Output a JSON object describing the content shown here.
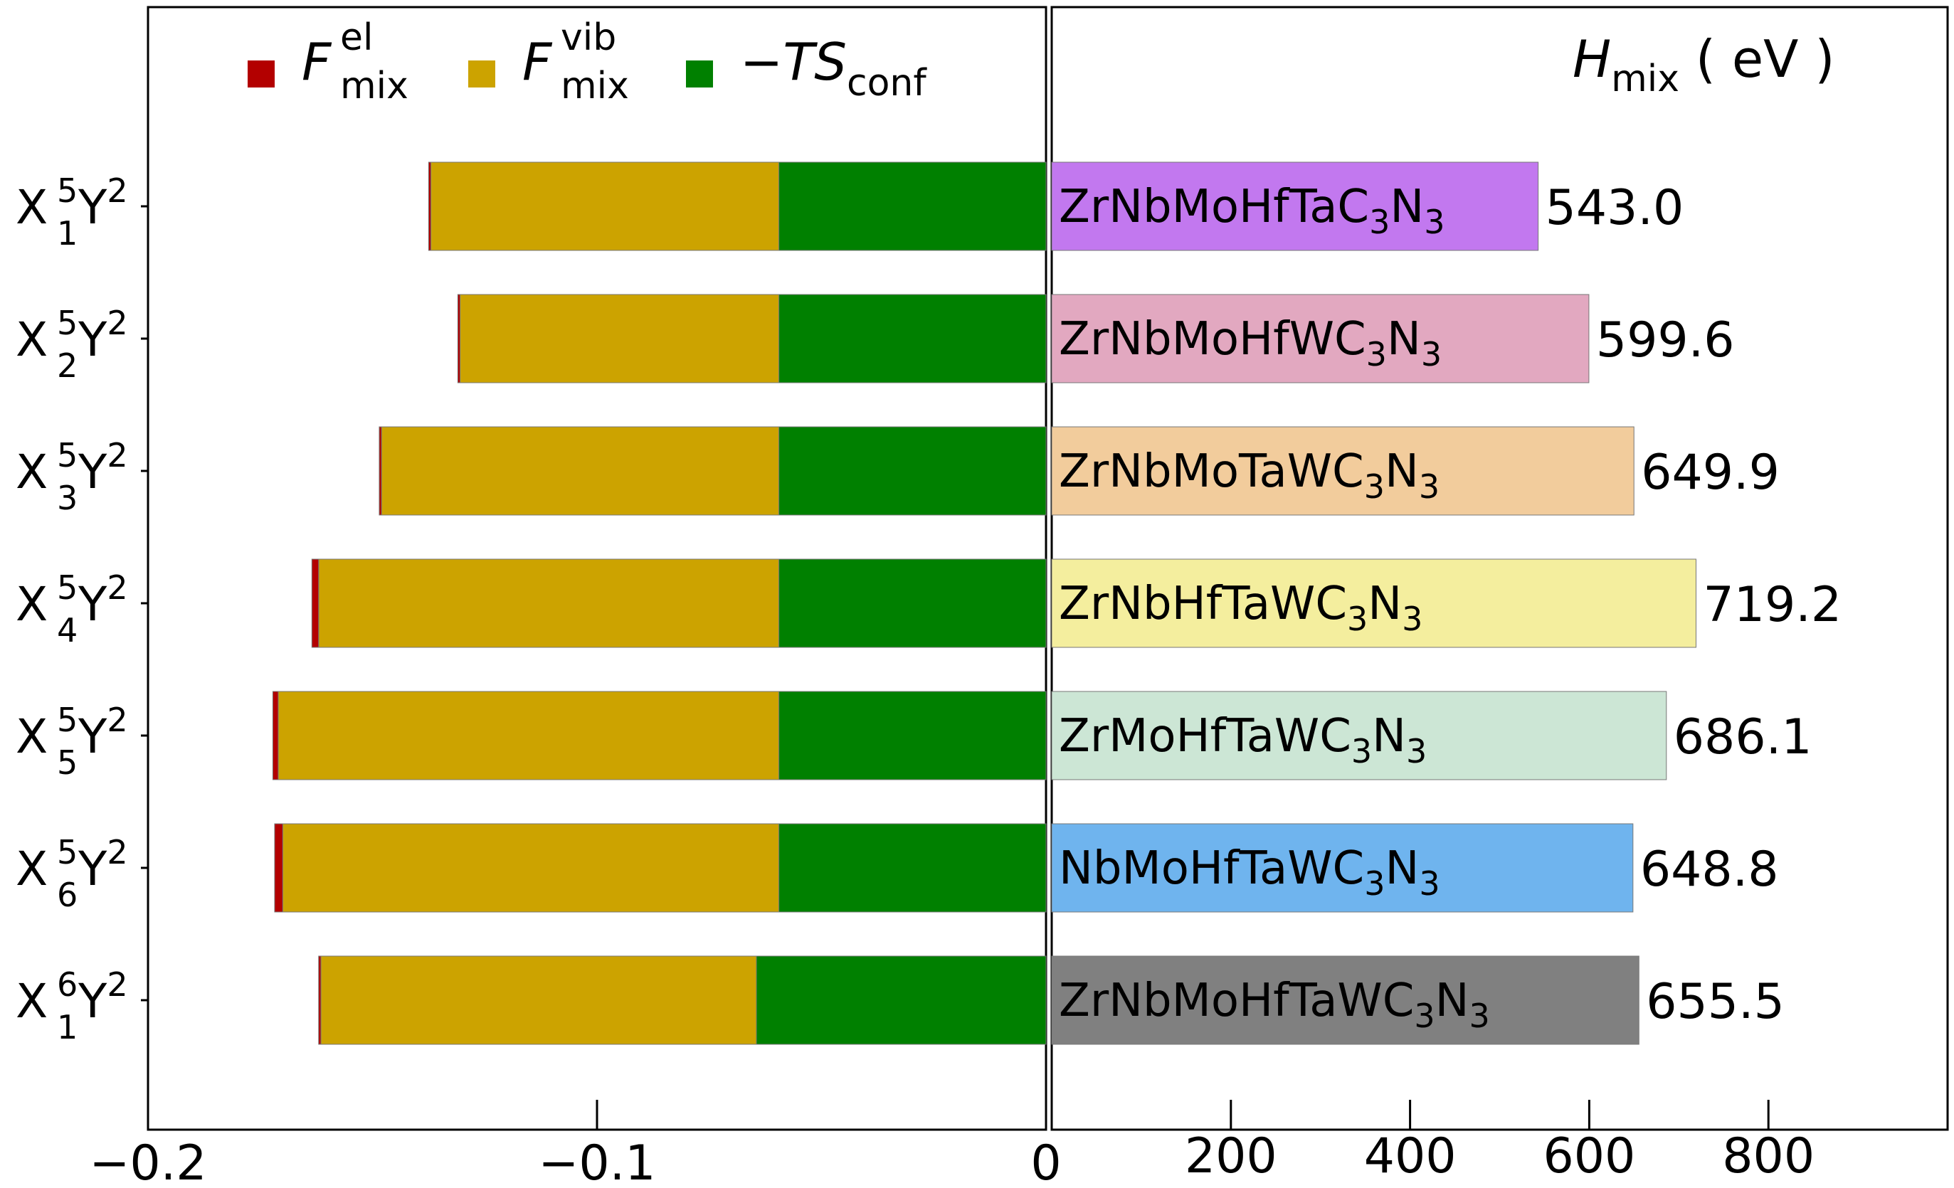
{
  "chart_data": [
    {
      "type": "bar",
      "orientation": "horizontal",
      "stacked": true,
      "categories": [
        {
          "base": "X",
          "sub": "1",
          "sup": "5",
          "tail": "Y",
          "tail_sup": "2"
        },
        {
          "base": "X",
          "sub": "2",
          "sup": "5",
          "tail": "Y",
          "tail_sup": "2"
        },
        {
          "base": "X",
          "sub": "3",
          "sup": "5",
          "tail": "Y",
          "tail_sup": "2"
        },
        {
          "base": "X",
          "sub": "4",
          "sup": "5",
          "tail": "Y",
          "tail_sup": "2"
        },
        {
          "base": "X",
          "sub": "5",
          "sup": "5",
          "tail": "Y",
          "tail_sup": "2"
        },
        {
          "base": "X",
          "sub": "6",
          "sup": "5",
          "tail": "Y",
          "tail_sup": "2"
        },
        {
          "base": "X",
          "sub": "1",
          "sup": "6",
          "tail": "Y",
          "tail_sup": "2"
        }
      ],
      "series": [
        {
          "legend": {
            "main": "F",
            "sub": "mix",
            "sup": "el"
          },
          "color": "#b30000",
          "values": [
            -0.0005,
            -0.0005,
            -0.0005,
            -0.0015,
            -0.0012,
            -0.0018,
            -0.0005
          ]
        },
        {
          "legend": {
            "main": "F",
            "sub": "mix",
            "sup": "vib"
          },
          "color": "#cca300",
          "values": [
            -0.0775,
            -0.071,
            -0.0885,
            -0.1025,
            -0.1115,
            -0.1105,
            -0.097
          ]
        },
        {
          "legend": {
            "main": "−TS",
            "sub": "conf",
            "sup": ""
          },
          "color": "#008000",
          "values": [
            -0.0595,
            -0.0595,
            -0.0595,
            -0.0595,
            -0.0595,
            -0.0595,
            -0.0645
          ]
        }
      ],
      "xlim": [
        -0.2,
        0
      ],
      "xticks": [
        -0.2,
        -0.1,
        0
      ],
      "xtick_labels": [
        "−0.2",
        "−0.1",
        "0"
      ],
      "legend_placement": "top"
    },
    {
      "type": "bar",
      "orientation": "horizontal",
      "title": {
        "main": "H",
        "sub": "mix",
        "unit": " ( eV )"
      },
      "bars": [
        {
          "label": {
            "pre": "ZrNbMoHfTaC",
            "n1": "3",
            "mid": "N",
            "n2": "3"
          },
          "value": 543.0,
          "value_label": "543.0",
          "color": "#c278ef"
        },
        {
          "label": {
            "pre": "ZrNbMoHfWC",
            "n1": "3",
            "mid": "N",
            "n2": "3"
          },
          "value": 599.6,
          "value_label": "599.6",
          "color": "#e2a8c0"
        },
        {
          "label": {
            "pre": "ZrNbMoTaWC",
            "n1": "3",
            "mid": "N",
            "n2": "3"
          },
          "value": 649.9,
          "value_label": "649.9",
          "color": "#f2cc9c"
        },
        {
          "label": {
            "pre": "ZrNbHfTaWC",
            "n1": "3",
            "mid": "N",
            "n2": "3"
          },
          "value": 719.2,
          "value_label": "719.2",
          "color": "#f4ee9e"
        },
        {
          "label": {
            "pre": "ZrMoHfTaWC",
            "n1": "3",
            "mid": "N",
            "n2": "3"
          },
          "value": 686.1,
          "value_label": "686.1",
          "color": "#cce6d5"
        },
        {
          "label": {
            "pre": "NbMoHfTaWC",
            "n1": "3",
            "mid": "N",
            "n2": "3"
          },
          "value": 648.8,
          "value_label": "648.8",
          "color": "#6fb4ee"
        },
        {
          "label": {
            "pre": "ZrNbMoHfTaWC",
            "n1": "3",
            "mid": "N",
            "n2": "3"
          },
          "value": 655.5,
          "value_label": "655.5",
          "color": "#808080"
        }
      ],
      "xlim": [
        0,
        1000
      ],
      "xticks": [
        200,
        400,
        600,
        800
      ],
      "xtick_labels": [
        "200",
        "400",
        "600",
        "800"
      ]
    }
  ]
}
